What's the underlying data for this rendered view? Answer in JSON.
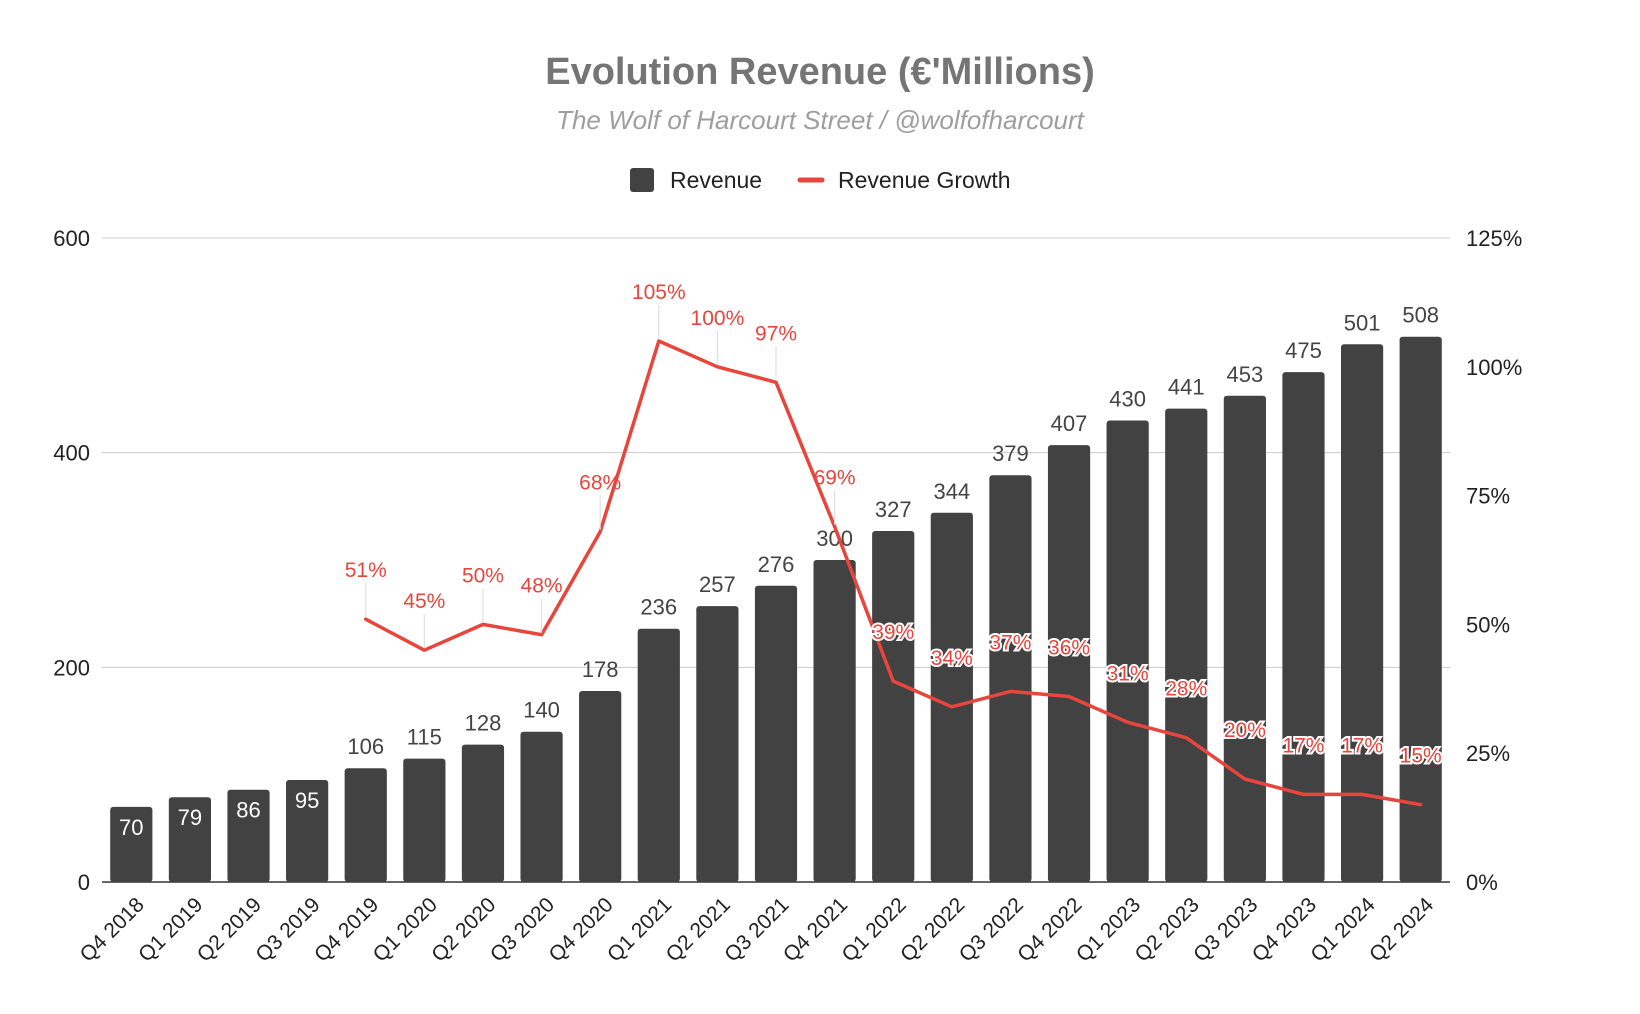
{
  "chart_data": {
    "type": "bar",
    "title": "Evolution Revenue (€'Millions)",
    "subtitle": "The Wolf of Harcourt Street / @wolfofharcourt",
    "legend_position": "top-center",
    "grid": true,
    "categories": [
      "Q4 2018",
      "Q1 2019",
      "Q2 2019",
      "Q3 2019",
      "Q4 2019",
      "Q1 2020",
      "Q2 2020",
      "Q3 2020",
      "Q4 2020",
      "Q1 2021",
      "Q2 2021",
      "Q3 2021",
      "Q4 2021",
      "Q1 2022",
      "Q2 2022",
      "Q3 2022",
      "Q4 2022",
      "Q1 2023",
      "Q2 2023",
      "Q3 2023",
      "Q4 2023",
      "Q1 2024",
      "Q2 2024"
    ],
    "series": [
      {
        "name": "Revenue",
        "type": "bar",
        "axis": "left",
        "color": "#424242",
        "values": [
          70,
          79,
          86,
          95,
          106,
          115,
          128,
          140,
          178,
          236,
          257,
          276,
          300,
          327,
          344,
          379,
          407,
          430,
          441,
          453,
          475,
          501,
          508
        ],
        "labels": [
          "70",
          "79",
          "86",
          "95",
          "106",
          "115",
          "128",
          "140",
          "178",
          "236",
          "257",
          "276",
          "300",
          "327",
          "344",
          "379",
          "407",
          "430",
          "441",
          "453",
          "475",
          "501",
          "508"
        ]
      },
      {
        "name": "Revenue Growth",
        "type": "line",
        "axis": "right",
        "color": "#e8453c",
        "values": [
          null,
          null,
          null,
          null,
          51,
          45,
          50,
          48,
          68,
          105,
          100,
          97,
          69,
          39,
          34,
          37,
          36,
          31,
          28,
          20,
          17,
          17,
          15
        ],
        "labels": [
          null,
          null,
          null,
          null,
          "51%",
          "45%",
          "50%",
          "48%",
          "68%",
          "105%",
          "100%",
          "97%",
          "69%",
          "39%",
          "34%",
          "37%",
          "36%",
          "31%",
          "28%",
          "20%",
          "17%",
          "17%",
          "15%"
        ]
      }
    ],
    "y_left": {
      "min": 0,
      "max": 600,
      "ticks": [
        "0",
        "200",
        "400",
        "600"
      ]
    },
    "y_right": {
      "min": 0,
      "max": 125,
      "ticks": [
        "0%",
        "25%",
        "50%",
        "75%",
        "100%",
        "125%"
      ]
    }
  }
}
